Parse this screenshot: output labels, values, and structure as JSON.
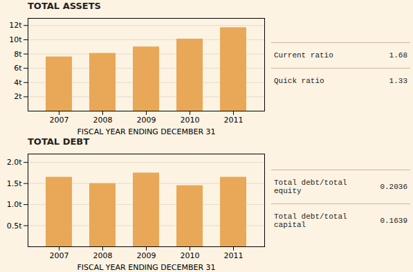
{
  "chart_data": [
    {
      "type": "bar",
      "title": "TOTAL ASSETS",
      "categories": [
        "2007",
        "2008",
        "2009",
        "2010",
        "2011"
      ],
      "values": [
        7.6,
        8.1,
        9.0,
        10.1,
        11.7
      ],
      "color": "#e8a857",
      "xlabel": "FISCAL YEAR ENDING DECEMBER 31",
      "ylim": [
        0,
        13
      ],
      "yticks": [
        {
          "value": 2,
          "label": "2t"
        },
        {
          "value": 4,
          "label": "4t"
        },
        {
          "value": 6,
          "label": "6t"
        },
        {
          "value": 8,
          "label": "8t"
        },
        {
          "value": 10,
          "label": "10t"
        },
        {
          "value": 12,
          "label": "12t"
        }
      ],
      "grid": true,
      "annotations": [
        {
          "text": "Current ratio",
          "value": 1.68
        },
        {
          "text": "Quick ratio",
          "value": 1.33
        }
      ]
    },
    {
      "type": "bar",
      "title": "TOTAL DEBT",
      "categories": [
        "2007",
        "2008",
        "2009",
        "2010",
        "2011"
      ],
      "values": [
        1.65,
        1.5,
        1.75,
        1.45,
        1.65
      ],
      "color": "#e8a857",
      "xlabel": "FISCAL YEAR ENDING DECEMBER 31",
      "ylim": [
        0,
        2.2
      ],
      "yticks": [
        {
          "value": 0.5,
          "label": "0.5t"
        },
        {
          "value": 1.0,
          "label": "1.0t"
        },
        {
          "value": 1.5,
          "label": "1.5t"
        },
        {
          "value": 2.0,
          "label": "2.0t"
        }
      ],
      "grid": true,
      "annotations": [
        {
          "text": "Total debt/total equity",
          "value": 0.2036
        },
        {
          "text": "Total debt/total\ncapital",
          "value": 0.1639
        }
      ]
    }
  ]
}
